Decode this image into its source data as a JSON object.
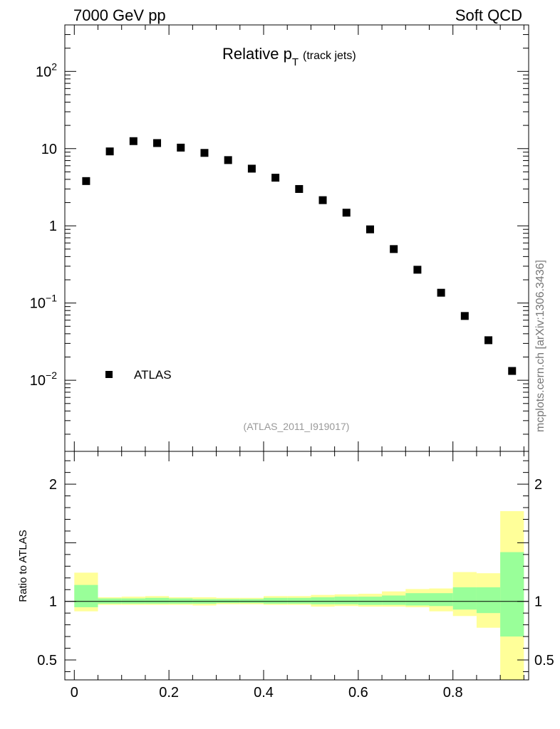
{
  "header": {
    "left": "7000 GeV pp",
    "right": "Soft QCD"
  },
  "chart_data": {
    "type": "scatter",
    "title_main": "Relative p",
    "title_sub": "T",
    "title_paren": "(track jets)",
    "reference_label": "(ATLAS_2011_I919017)",
    "side_label": "mcplots.cern.ch [arXiv:1306.3436]",
    "legend": {
      "entry": "ATLAS",
      "placement": "bottom-left"
    },
    "x_range": [
      -0.02,
      0.96
    ],
    "y_scale": "log",
    "y_range": [
      0.0012,
      400
    ],
    "y_ticks": [
      {
        "value": 100,
        "base": "10",
        "exp": "2"
      },
      {
        "value": 10,
        "base": "10",
        "exp": ""
      },
      {
        "value": 1,
        "base": "1",
        "exp": ""
      },
      {
        "value": 0.1,
        "base": "10",
        "exp": "−1"
      },
      {
        "value": 0.01,
        "base": "10",
        "exp": "−2"
      }
    ],
    "series": [
      {
        "name": "ATLAS",
        "x": [
          0.025,
          0.075,
          0.125,
          0.175,
          0.225,
          0.275,
          0.325,
          0.375,
          0.425,
          0.475,
          0.525,
          0.575,
          0.625,
          0.675,
          0.725,
          0.775,
          0.825,
          0.875,
          0.925
        ],
        "y": [
          3.8,
          9.2,
          12.5,
          11.8,
          10.3,
          8.8,
          7.1,
          5.5,
          4.2,
          3.0,
          2.15,
          1.48,
          0.9,
          0.5,
          0.27,
          0.136,
          0.068,
          0.033,
          0.0132
        ]
      }
    ],
    "ratio": {
      "ylabel": "Ratio to ATLAS",
      "y_range": [
        0.33,
        2.28
      ],
      "y_ticks": [
        "0.5",
        "1",
        "2"
      ],
      "x_ticks": [
        "0",
        "0.2",
        "0.4",
        "0.6",
        "0.8"
      ],
      "bins": [
        0,
        0.05,
        0.1,
        0.15,
        0.2,
        0.25,
        0.3,
        0.35,
        0.4,
        0.45,
        0.5,
        0.55,
        0.6,
        0.65,
        0.7,
        0.75,
        0.8,
        0.85,
        0.9,
        0.95
      ],
      "band_inner": [
        [
          0.95,
          1.14
        ],
        [
          0.98,
          1.025
        ],
        [
          0.98,
          1.025
        ],
        [
          0.98,
          1.03
        ],
        [
          0.98,
          1.025
        ],
        [
          0.98,
          1.02
        ],
        [
          0.985,
          1.02
        ],
        [
          0.985,
          1.02
        ],
        [
          0.98,
          1.03
        ],
        [
          0.98,
          1.03
        ],
        [
          0.975,
          1.035
        ],
        [
          0.975,
          1.04
        ],
        [
          0.97,
          1.04
        ],
        [
          0.97,
          1.05
        ],
        [
          0.965,
          1.07
        ],
        [
          0.96,
          1.07
        ],
        [
          0.93,
          1.12
        ],
        [
          0.9,
          1.12
        ],
        [
          0.7,
          1.42
        ]
      ],
      "band_outer": [
        [
          0.915,
          1.245
        ],
        [
          0.97,
          1.035
        ],
        [
          0.97,
          1.04
        ],
        [
          0.97,
          1.045
        ],
        [
          0.97,
          1.035
        ],
        [
          0.965,
          1.035
        ],
        [
          0.975,
          1.03
        ],
        [
          0.975,
          1.03
        ],
        [
          0.97,
          1.045
        ],
        [
          0.97,
          1.045
        ],
        [
          0.955,
          1.055
        ],
        [
          0.96,
          1.06
        ],
        [
          0.955,
          1.065
        ],
        [
          0.955,
          1.085
        ],
        [
          0.95,
          1.105
        ],
        [
          0.915,
          1.11
        ],
        [
          0.875,
          1.25
        ],
        [
          0.775,
          1.24
        ],
        [
          0.33,
          1.77
        ]
      ]
    },
    "colors": {
      "inner_band": "#99ff99",
      "outer_band": "#ffff99",
      "marker": "#000000",
      "side_label": "#777777",
      "reference_label": "#999999"
    }
  }
}
